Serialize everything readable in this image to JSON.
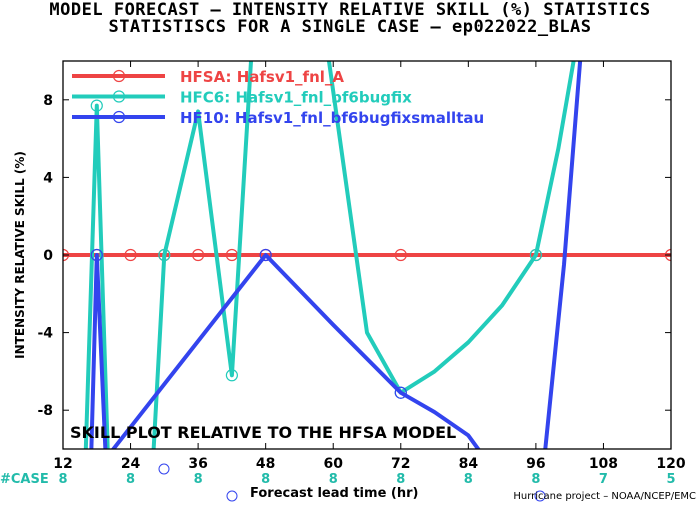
{
  "titles": {
    "line1": "MODEL FORECAST – INTENSITY RELATIVE SKILL (%) STATISTICS",
    "line2": "STATISTISCS FOR A SINGLE CASE – ep022022_BLAS"
  },
  "footer": {
    "case_label": "#CASE",
    "credit": "Hurricane project – NOAA/NCEP/EMC"
  },
  "colors": {
    "hfsa": "#ee4444",
    "hfc6": "#22ccbb",
    "hf10": "#3344ee",
    "case": "#22bbaa"
  },
  "chart_data": {
    "type": "line",
    "title": "MODEL FORECAST – INTENSITY RELATIVE SKILL (%) STATISTICS",
    "subtitle": "STATISTISCS FOR A SINGLE CASE – ep022022_BLAS",
    "xlabel": "Forecast lead time (hr)",
    "ylabel": "INTENSITY RELATIVE SKILL (%)",
    "xlim": [
      12,
      120
    ],
    "ylim": [
      -10,
      10
    ],
    "xticks": [
      12,
      24,
      36,
      48,
      60,
      72,
      84,
      96,
      108,
      120
    ],
    "yticks": [
      -8,
      -4,
      0,
      4,
      8
    ],
    "grid": false,
    "legend": "top-left",
    "annotation": "SKILL PLOT RELATIVE TO THE HFSA MODEL",
    "series": [
      {
        "name": "HFSA: Hafsv1_fnl_A",
        "color": "#ee4444",
        "points": [
          [
            12,
            0
          ],
          [
            18,
            0
          ],
          [
            24,
            0
          ],
          [
            30,
            0
          ],
          [
            36,
            0
          ],
          [
            42,
            0
          ],
          [
            48,
            0
          ],
          [
            72,
            0
          ],
          [
            96,
            0
          ],
          [
            120,
            0
          ]
        ],
        "markers": [
          [
            12,
            0
          ],
          [
            18,
            0
          ],
          [
            24,
            0
          ],
          [
            30,
            0
          ],
          [
            36,
            0
          ],
          [
            42,
            0
          ],
          [
            48,
            0
          ],
          [
            72,
            0
          ],
          [
            96,
            0
          ],
          [
            120,
            0
          ]
        ]
      },
      {
        "name": "HFC6: Hafsv1_fnl_bf6bugfix",
        "color": "#22ccbb",
        "points": [
          [
            16,
            -10.5
          ],
          [
            18,
            7.7
          ],
          [
            20,
            -10.5
          ],
          [
            28,
            -10.5
          ],
          [
            30,
            0
          ],
          [
            36,
            7.4
          ],
          [
            42,
            -6.2
          ],
          [
            45.5,
            10.5
          ],
          [
            59,
            10.5
          ],
          [
            66,
            -4
          ],
          [
            72,
            -7.1
          ],
          [
            78,
            -6
          ],
          [
            84,
            -4.5
          ],
          [
            90,
            -2.6
          ],
          [
            96,
            0
          ],
          [
            100,
            5.5
          ],
          [
            103,
            10.5
          ]
        ],
        "markers": [
          [
            18,
            7.7
          ],
          [
            30,
            0
          ],
          [
            42,
            -6.2
          ],
          [
            72,
            -7.1
          ],
          [
            96,
            0
          ]
        ]
      },
      {
        "name": "HF10: Hafsv1_fnl_bf6bugfixsmalltau",
        "color": "#3344ee",
        "points": [
          [
            17,
            -10.5
          ],
          [
            18,
            0
          ],
          [
            19.6,
            -10.5
          ],
          [
            48,
            0
          ],
          [
            60,
            -3.6
          ],
          [
            72,
            -7.1
          ],
          [
            78,
            -8.1
          ],
          [
            84,
            -9.3
          ],
          [
            87,
            -10.5
          ],
          [
            97.5,
            -10.5
          ],
          [
            101,
            -0.5
          ],
          [
            104,
            10.5
          ]
        ],
        "markers": [
          [
            18,
            0
          ],
          [
            48,
            0
          ],
          [
            72,
            -7.1
          ]
        ]
      }
    ],
    "case_counts": {
      "x": [
        12,
        24,
        36,
        48,
        60,
        72,
        84,
        96,
        108,
        120
      ],
      "values": [
        "8",
        "8",
        "8",
        "8",
        "8",
        "8",
        "8",
        "8",
        "7",
        "5"
      ]
    }
  }
}
